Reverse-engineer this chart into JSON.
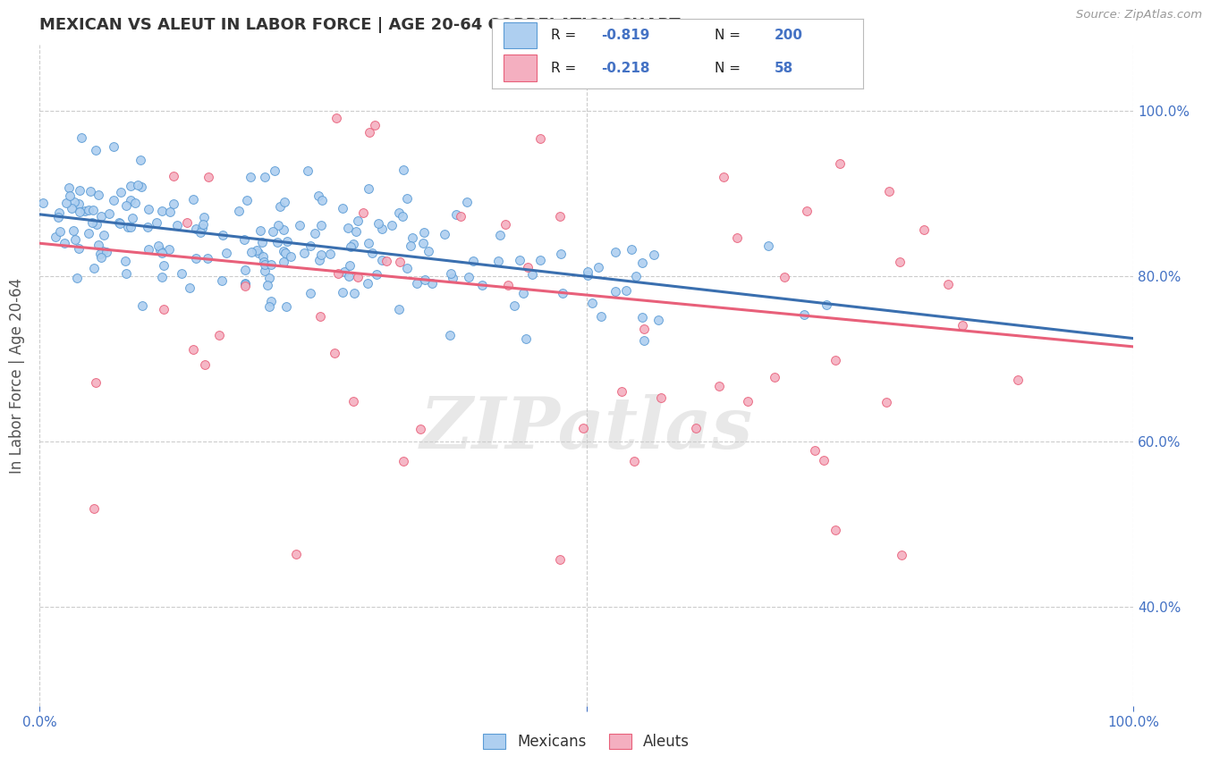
{
  "title": "MEXICAN VS ALEUT IN LABOR FORCE | AGE 20-64 CORRELATION CHART",
  "source_text": "Source: ZipAtlas.com",
  "ylabel": "In Labor Force | Age 20-64",
  "xlim": [
    0.0,
    1.0
  ],
  "ylim": [
    0.28,
    1.08
  ],
  "ytick_pos": [
    0.4,
    0.6,
    0.8,
    1.0
  ],
  "ytick_labels": [
    "40.0%",
    "60.0%",
    "80.0%",
    "100.0%"
  ],
  "mexican_color": "#aecff0",
  "aleut_color": "#f4afc0",
  "mexican_edge_color": "#5b9bd5",
  "aleut_edge_color": "#e8607a",
  "mexican_line_color": "#3a6faf",
  "aleut_line_color": "#e8607a",
  "r_mexican": -0.819,
  "n_mexican": 200,
  "r_aleut": -0.218,
  "n_aleut": 58,
  "legend_label_mexican": "Mexicans",
  "legend_label_aleut": "Aleuts",
  "watermark": "ZIPatlas",
  "background_color": "#ffffff",
  "grid_color": "#cccccc",
  "title_color": "#333333",
  "axis_label_color": "#555555",
  "tick_color": "#4472c4",
  "mex_line_y0": 0.875,
  "mex_line_y1": 0.725,
  "aleut_line_y0": 0.84,
  "aleut_line_y1": 0.715
}
